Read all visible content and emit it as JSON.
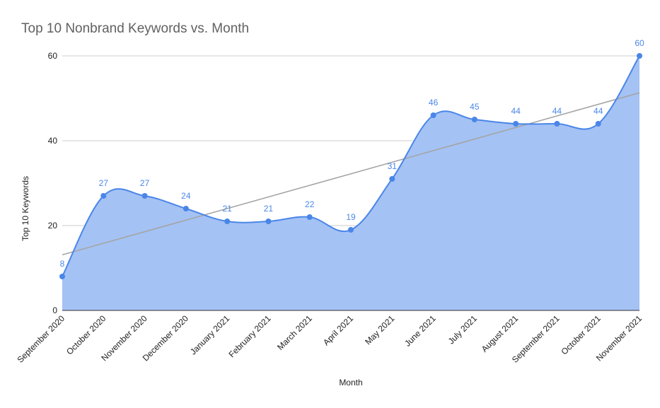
{
  "chart_data": {
    "type": "area",
    "title": "Top 10 Nonbrand Keywords vs. Month",
    "xlabel": "Month",
    "ylabel": "Top 10 Keywords",
    "categories": [
      "September 2020",
      "October 2020",
      "November 2020",
      "December 2020",
      "January 2021",
      "February 2021",
      "March 2021",
      "April 2021",
      "May 2021",
      "June 2021",
      "July 2021",
      "August 2021",
      "September 2021",
      "October 2021",
      "November 2021"
    ],
    "series": [
      {
        "name": "Top 10 Keywords",
        "values": [
          8,
          27,
          27,
          24,
          21,
          21,
          22,
          19,
          31,
          46,
          45,
          44,
          44,
          44,
          60
        ],
        "color": "#4a86e8",
        "fill": "#a4c2f4"
      }
    ],
    "trendline": {
      "type": "linear",
      "start": 13.1,
      "end": 51.3,
      "color": "#a5a5a5"
    },
    "ylim": [
      0,
      60
    ],
    "yticks": [
      0,
      20,
      40,
      60
    ],
    "grid": true,
    "legend": "none"
  }
}
